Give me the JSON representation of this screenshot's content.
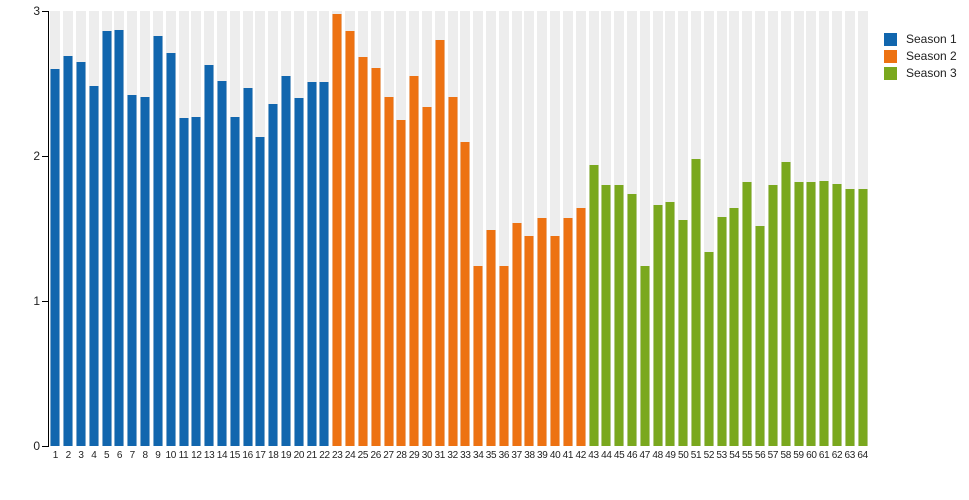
{
  "chart_data": {
    "type": "bar",
    "title": "",
    "xlabel": "",
    "ylabel": "",
    "ylim": [
      0,
      3
    ],
    "yticks": [
      0,
      1,
      2,
      3
    ],
    "grid": "vertical-stripes",
    "stripe_color": "#EDEDED",
    "legend_position": "top-right",
    "categories": [
      1,
      2,
      3,
      4,
      5,
      6,
      7,
      8,
      9,
      10,
      11,
      12,
      13,
      14,
      15,
      16,
      17,
      18,
      19,
      20,
      21,
      22,
      23,
      24,
      25,
      26,
      27,
      28,
      29,
      30,
      31,
      32,
      33,
      34,
      35,
      36,
      37,
      38,
      39,
      40,
      41,
      42,
      43,
      44,
      45,
      46,
      47,
      48,
      49,
      50,
      51,
      52,
      53,
      54,
      55,
      56,
      57,
      58,
      59,
      60,
      61,
      62,
      63,
      64
    ],
    "series": [
      {
        "name": "Season 1",
        "color": "#1166AE",
        "values": [
          2.6,
          2.69,
          2.65,
          2.48,
          2.86,
          2.87,
          2.42,
          2.41,
          2.83,
          2.71,
          2.26,
          2.27,
          2.63,
          2.52,
          2.27,
          2.47,
          2.13,
          2.36,
          2.55,
          2.4,
          2.51,
          2.51
        ]
      },
      {
        "name": "Season 2",
        "color": "#ED7212",
        "values": [
          2.98,
          2.86,
          2.68,
          2.61,
          2.41,
          2.25,
          2.55,
          2.34,
          2.8,
          2.41,
          2.1,
          1.24,
          1.49,
          1.24,
          1.54,
          1.45,
          1.57,
          1.45,
          1.57,
          1.64
        ]
      },
      {
        "name": "Season 3",
        "color": "#7AA81E",
        "values": [
          1.94,
          1.8,
          1.8,
          1.74,
          1.24,
          1.66,
          1.68,
          1.56,
          1.98,
          1.34,
          1.58,
          1.64,
          1.82,
          1.52,
          1.8,
          1.96,
          1.82,
          1.82,
          1.83,
          1.81,
          1.77,
          1.77
        ]
      }
    ]
  },
  "axes": {
    "y_tick_labels": [
      "0",
      "1",
      "2",
      "3"
    ]
  },
  "legend": {
    "items": [
      "Season 1",
      "Season 2",
      "Season 3"
    ]
  }
}
